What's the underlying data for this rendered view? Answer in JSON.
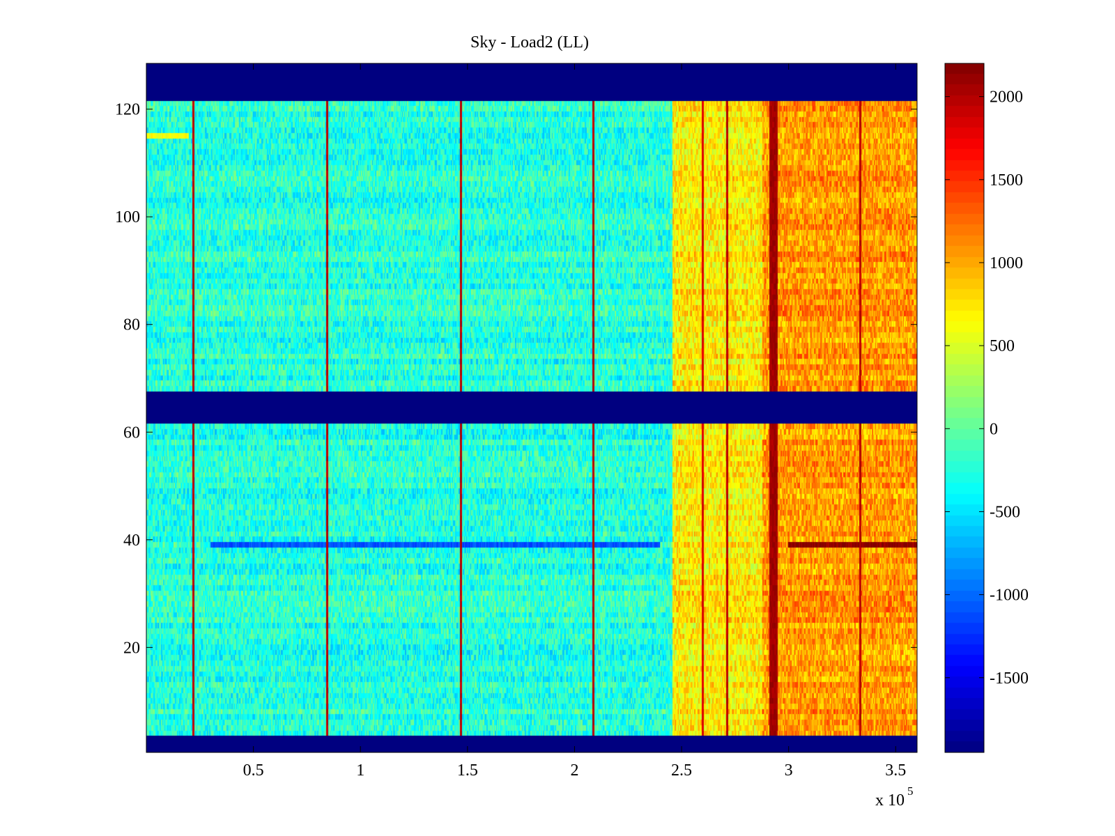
{
  "chart_data": {
    "type": "heatmap",
    "title": "Sky - Load2 (LL)",
    "xlabel": "",
    "ylabel": "",
    "x_multiplier_label": "x 10",
    "x_multiplier_exponent": "5",
    "xlim": [
      0,
      3.6
    ],
    "ylim": [
      0.5,
      128.5
    ],
    "xticks": [
      {
        "value": 0.5,
        "label": "0.5"
      },
      {
        "value": 1,
        "label": "1"
      },
      {
        "value": 1.5,
        "label": "1.5"
      },
      {
        "value": 2,
        "label": "2"
      },
      {
        "value": 2.5,
        "label": "2.5"
      },
      {
        "value": 3,
        "label": "3"
      },
      {
        "value": 3.5,
        "label": "3.5"
      }
    ],
    "yticks": [
      {
        "value": 20,
        "label": "20"
      },
      {
        "value": 40,
        "label": "40"
      },
      {
        "value": 60,
        "label": "60"
      },
      {
        "value": 80,
        "label": "80"
      },
      {
        "value": 100,
        "label": "100"
      },
      {
        "value": 120,
        "label": "120"
      }
    ],
    "colormap": "jet",
    "clim": [
      -1950,
      2200
    ],
    "colorbar_ticks": [
      {
        "value": 2000,
        "label": "2000"
      },
      {
        "value": 1500,
        "label": "1500"
      },
      {
        "value": 1000,
        "label": "1000"
      },
      {
        "value": 500,
        "label": "500"
      },
      {
        "value": 0,
        "label": "0"
      },
      {
        "value": -500,
        "label": "-500"
      },
      {
        "value": -1000,
        "label": "-1000"
      },
      {
        "value": -1500,
        "label": "-1500"
      }
    ],
    "masked_row_ranges": [
      [
        1,
        3
      ],
      [
        62,
        67
      ],
      [
        122,
        128
      ]
    ],
    "masked_value": -1950,
    "x_regions": [
      {
        "x_start": 0,
        "x_end": 2.46,
        "base_value": -250
      },
      {
        "x_start": 2.46,
        "x_end": 2.88,
        "base_value": 700
      },
      {
        "x_start": 2.88,
        "x_end": 3.6,
        "base_value": 1050
      }
    ],
    "spike_lines": [
      {
        "x": 0.22,
        "value": 2050
      },
      {
        "x": 0.845,
        "value": 2050
      },
      {
        "x": 1.47,
        "value": 2050
      },
      {
        "x": 2.09,
        "value": 2050
      },
      {
        "x": 2.715,
        "value": 2050
      },
      {
        "x": 3.335,
        "value": 2050
      },
      {
        "x": 2.6,
        "value": 1900
      },
      {
        "x": 2.93,
        "value": 2150
      }
    ],
    "row_features": [
      {
        "row": 39,
        "x_start": 0.3,
        "x_end": 2.4,
        "value": -1100
      },
      {
        "row": 39,
        "x_start": 3.0,
        "x_end": 3.6,
        "value": 2150
      },
      {
        "row": 115,
        "x_start": 0,
        "x_end": 0.2,
        "value": 600
      }
    ]
  }
}
